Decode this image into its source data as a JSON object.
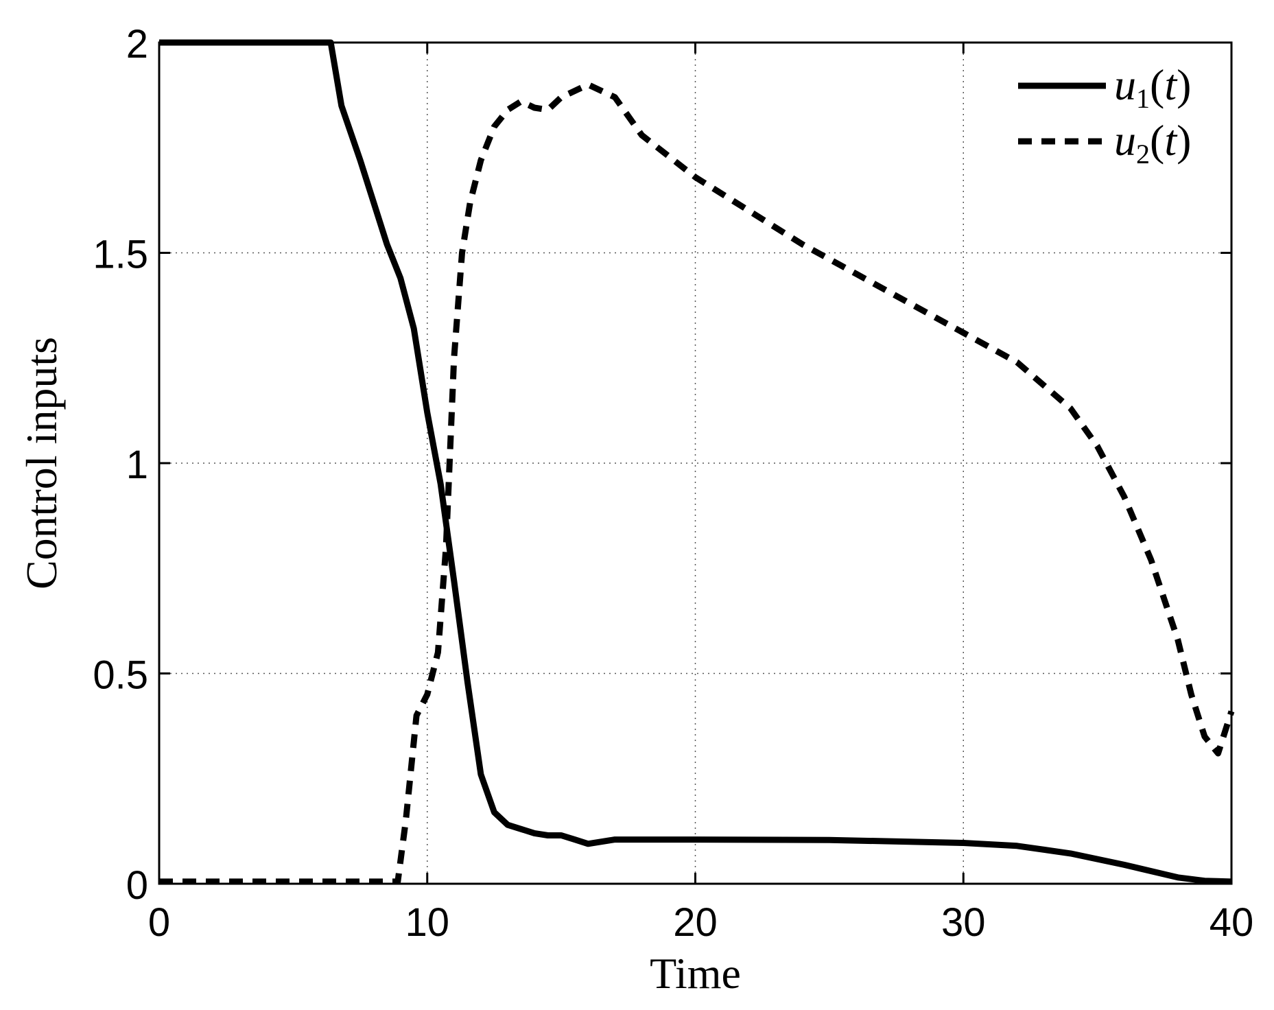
{
  "chart_data": {
    "type": "line",
    "xlabel": "Time",
    "ylabel": "Control inputs",
    "xlim": [
      0,
      40
    ],
    "ylim": [
      0,
      2
    ],
    "xticks": [
      "0",
      "10",
      "20",
      "30",
      "40"
    ],
    "yticks": [
      "0",
      "0.5",
      "1",
      "1.5",
      "2"
    ],
    "grid": true,
    "legend_position": "top-right",
    "series": [
      {
        "name": "u1(t)",
        "legend_var": "u",
        "legend_sub": "1",
        "legend_arg": "t",
        "style": "solid",
        "color": "#000000",
        "x": [
          0,
          6.4,
          6.8,
          7.5,
          8.0,
          8.5,
          9.0,
          9.5,
          10.0,
          10.5,
          11.0,
          11.5,
          12.0,
          12.5,
          13.0,
          13.5,
          14.0,
          14.5,
          15.0,
          15.5,
          16.0,
          16.5,
          17.0,
          18.0,
          20.0,
          25.0,
          30.0,
          32.0,
          34.0,
          36.0,
          38.0,
          39.0,
          40.0
        ],
        "y": [
          2.0,
          2.0,
          1.85,
          1.72,
          1.62,
          1.52,
          1.44,
          1.32,
          1.12,
          0.95,
          0.72,
          0.48,
          0.26,
          0.17,
          0.14,
          0.13,
          0.12,
          0.115,
          0.115,
          0.105,
          0.095,
          0.1,
          0.105,
          0.105,
          0.105,
          0.104,
          0.097,
          0.09,
          0.072,
          0.045,
          0.015,
          0.007,
          0.005
        ]
      },
      {
        "name": "u2(t)",
        "legend_var": "u",
        "legend_sub": "2",
        "legend_arg": "t",
        "style": "dashed",
        "color": "#000000",
        "x": [
          0,
          8.9,
          9.2,
          9.6,
          10.0,
          10.4,
          10.7,
          11.0,
          11.3,
          11.6,
          12.0,
          12.5,
          13.0,
          13.5,
          14.0,
          14.5,
          15.0,
          16.0,
          17.0,
          18.0,
          19.0,
          20.0,
          22.0,
          24.0,
          26.0,
          28.0,
          30.0,
          32.0,
          34.0,
          35.0,
          36.0,
          37.0,
          38.0,
          38.5,
          39.0,
          39.5,
          40.0
        ],
        "y": [
          0.005,
          0.005,
          0.15,
          0.4,
          0.45,
          0.55,
          0.8,
          1.25,
          1.5,
          1.62,
          1.72,
          1.8,
          1.84,
          1.86,
          1.845,
          1.84,
          1.87,
          1.9,
          1.87,
          1.78,
          1.73,
          1.68,
          1.6,
          1.52,
          1.45,
          1.38,
          1.31,
          1.24,
          1.13,
          1.04,
          0.92,
          0.77,
          0.58,
          0.45,
          0.35,
          0.31,
          0.41
        ]
      }
    ]
  }
}
